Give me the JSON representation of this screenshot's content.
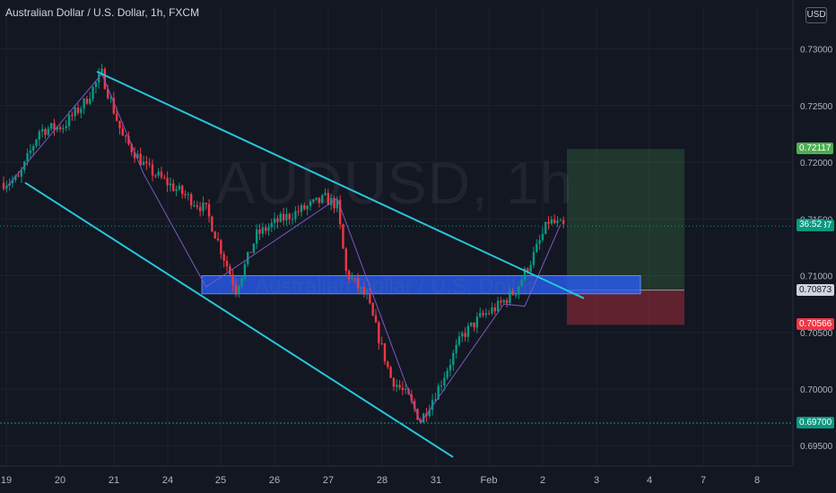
{
  "header": {
    "title": "Australian Dollar / U.S. Dollar, 1h, FXCM"
  },
  "currency_badge": "USD",
  "watermark": {
    "symbol": "AUDUSD, 1h",
    "name": "Australian Dollar / U.S. Dollar"
  },
  "countdown": "36:52",
  "colors": {
    "background": "#131722",
    "up": "#089981",
    "down": "#f23645",
    "channel": "#26c6da",
    "zone": "#2962ff",
    "zigzag": "#7e57c2",
    "target_box": "#4caf50",
    "stop_box": "#f23645"
  },
  "chart_data": {
    "type": "candlestick",
    "symbol": "AUDUSD",
    "title": "Australian Dollar / U.S. Dollar, 1h, FXCM",
    "x_ticks": [
      "19",
      "20",
      "21",
      "24",
      "25",
      "26",
      "27",
      "28",
      "31",
      "Feb",
      "2",
      "3",
      "4",
      "7",
      "8"
    ],
    "y_ticks": [
      "0.73000",
      "0.72500",
      "0.72000",
      "0.71500",
      "0.71000",
      "0.70500",
      "0.70000",
      "0.69500"
    ],
    "ylim": [
      0.6932,
      0.7321
    ],
    "price_labels": [
      {
        "value": 0.72117,
        "text": "0.72117",
        "bg": "#4caf50",
        "fg": "#ffffff"
      },
      {
        "value": 0.71437,
        "text": "0.71437",
        "bg": "#089981",
        "fg": "#ffffff"
      },
      {
        "value": 0.70873,
        "text": "0.70873",
        "bg": "#d1d4dc",
        "fg": "#131722"
      },
      {
        "value": 0.70566,
        "text": "0.70566",
        "bg": "#f23645",
        "fg": "#ffffff"
      },
      {
        "value": 0.697,
        "text": "0.69700",
        "bg": "#089981",
        "fg": "#ffffff"
      }
    ],
    "anchors": [
      {
        "i": 0,
        "v": 0.7182
      },
      {
        "i": 5,
        "v": 0.7185
      },
      {
        "i": 12,
        "v": 0.7228
      },
      {
        "i": 20,
        "v": 0.7232
      },
      {
        "i": 27,
        "v": 0.7252
      },
      {
        "i": 33,
        "v": 0.7278
      },
      {
        "i": 40,
        "v": 0.7222
      },
      {
        "i": 48,
        "v": 0.7195
      },
      {
        "i": 57,
        "v": 0.7178
      },
      {
        "i": 68,
        "v": 0.7158
      },
      {
        "i": 78,
        "v": 0.7088
      },
      {
        "i": 85,
        "v": 0.7136
      },
      {
        "i": 92,
        "v": 0.7148
      },
      {
        "i": 100,
        "v": 0.7158
      },
      {
        "i": 108,
        "v": 0.7168
      },
      {
        "i": 112,
        "v": 0.7162
      },
      {
        "i": 115,
        "v": 0.7103
      },
      {
        "i": 122,
        "v": 0.708
      },
      {
        "i": 130,
        "v": 0.701
      },
      {
        "i": 136,
        "v": 0.6992
      },
      {
        "i": 140,
        "v": 0.6972
      },
      {
        "i": 146,
        "v": 0.7001
      },
      {
        "i": 154,
        "v": 0.7047
      },
      {
        "i": 160,
        "v": 0.7063
      },
      {
        "i": 166,
        "v": 0.7073
      },
      {
        "i": 172,
        "v": 0.7087
      },
      {
        "i": 178,
        "v": 0.7118
      },
      {
        "i": 183,
        "v": 0.7148
      },
      {
        "i": 188,
        "v": 0.7143
      }
    ],
    "candle_count": 189,
    "candle_seed": 7,
    "drawings": {
      "channel_upper": [
        [
          0.728,
          "20"
        ],
        [
          0.708,
          "3"
        ]
      ],
      "channel_lower": [
        [
          0.7182,
          "19"
        ],
        [
          0.694,
          "31"
        ]
      ],
      "support_zone": [
        0.71,
        0.7084
      ],
      "long_position": {
        "entry": 0.70873,
        "target": 0.72117,
        "stop": 0.70566
      }
    }
  }
}
